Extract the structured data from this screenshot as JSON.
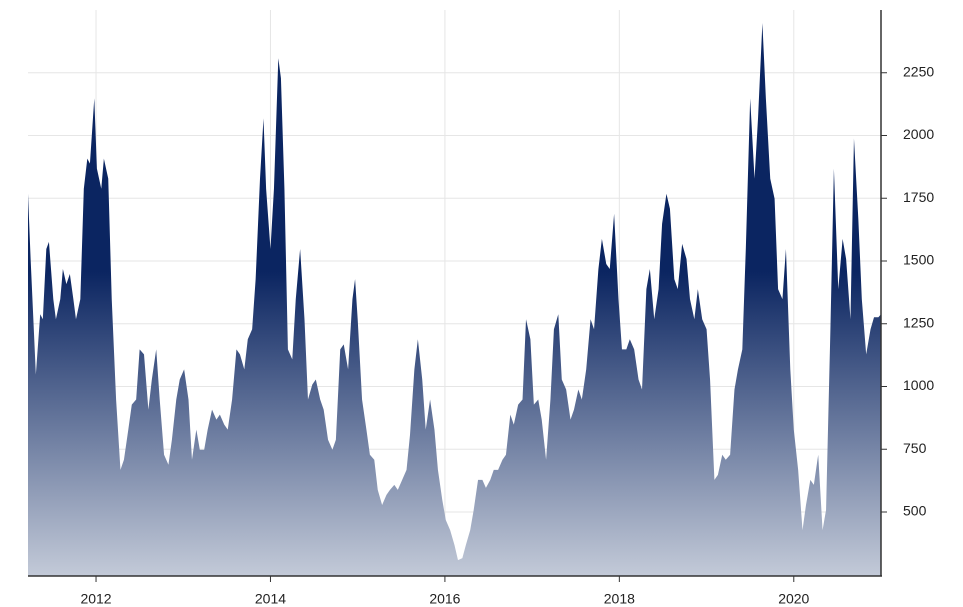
{
  "chart_data": {
    "type": "area",
    "x": [
      2011.22,
      2011.25,
      2011.31,
      2011.36,
      2011.39,
      2011.43,
      2011.46,
      2011.51,
      2011.54,
      2011.59,
      2011.62,
      2011.66,
      2011.7,
      2011.74,
      2011.77,
      2011.82,
      2011.86,
      2011.9,
      2011.93,
      2011.98,
      2012.01,
      2012.06,
      2012.09,
      2012.14,
      2012.18,
      2012.23,
      2012.28,
      2012.32,
      2012.37,
      2012.41,
      2012.46,
      2012.5,
      2012.55,
      2012.6,
      2012.64,
      2012.69,
      2012.73,
      2012.78,
      2012.83,
      2012.87,
      2012.92,
      2012.96,
      2013.01,
      2013.06,
      2013.1,
      2013.15,
      2013.19,
      2013.24,
      2013.28,
      2013.33,
      2013.38,
      2013.42,
      2013.47,
      2013.51,
      2013.56,
      2013.61,
      2013.65,
      2013.7,
      2013.74,
      2013.79,
      2013.83,
      2013.88,
      2013.92,
      2013.95,
      2014.0,
      2014.04,
      2014.09,
      2014.12,
      2014.16,
      2014.2,
      2014.25,
      2014.29,
      2014.34,
      2014.39,
      2014.43,
      2014.48,
      2014.52,
      2014.57,
      2014.61,
      2014.66,
      2014.71,
      2014.75,
      2014.8,
      2014.84,
      2014.89,
      2014.94,
      2014.97,
      2015.0,
      2015.05,
      2015.1,
      2015.14,
      2015.19,
      2015.23,
      2015.28,
      2015.33,
      2015.37,
      2015.42,
      2015.46,
      2015.51,
      2015.56,
      2015.6,
      2015.65,
      2015.69,
      2015.74,
      2015.78,
      2015.83,
      2015.88,
      2015.92,
      2015.97,
      2016.01,
      2016.06,
      2016.11,
      2016.15,
      2016.2,
      2016.24,
      2016.29,
      2016.33,
      2016.38,
      2016.43,
      2016.47,
      2016.52,
      2016.56,
      2016.61,
      2016.66,
      2016.7,
      2016.75,
      2016.79,
      2016.84,
      2016.89,
      2016.93,
      2016.98,
      2017.02,
      2017.07,
      2017.11,
      2017.16,
      2017.21,
      2017.25,
      2017.3,
      2017.34,
      2017.39,
      2017.44,
      2017.48,
      2017.53,
      2017.57,
      2017.62,
      2017.67,
      2017.71,
      2017.76,
      2017.8,
      2017.85,
      2017.89,
      2017.94,
      2017.99,
      2018.03,
      2018.08,
      2018.12,
      2018.17,
      2018.22,
      2018.26,
      2018.31,
      2018.35,
      2018.4,
      2018.45,
      2018.49,
      2018.54,
      2018.58,
      2018.63,
      2018.67,
      2018.72,
      2018.77,
      2018.81,
      2018.86,
      2018.9,
      2018.95,
      2019.0,
      2019.04,
      2019.09,
      2019.13,
      2019.18,
      2019.22,
      2019.27,
      2019.32,
      2019.36,
      2019.41,
      2019.45,
      2019.5,
      2019.55,
      2019.59,
      2019.64,
      2019.68,
      2019.73,
      2019.78,
      2019.82,
      2019.87,
      2019.91,
      2019.96,
      2020.0,
      2020.05,
      2020.1,
      2020.14,
      2020.19,
      2020.23,
      2020.28,
      2020.33,
      2020.37,
      2020.42,
      2020.46,
      2020.51,
      2020.56,
      2020.6,
      2020.65,
      2020.69,
      2020.74,
      2020.78,
      2020.83,
      2020.88,
      2020.92,
      2020.97,
      2021.0
    ],
    "values": [
      1768,
      1508,
      1048,
      1288,
      1268,
      1548,
      1576,
      1348,
      1268,
      1348,
      1468,
      1408,
      1448,
      1348,
      1268,
      1348,
      1788,
      1908,
      1888,
      2148,
      1868,
      1788,
      1908,
      1828,
      1348,
      948,
      668,
      708,
      828,
      928,
      948,
      1148,
      1128,
      908,
      1028,
      1148,
      948,
      728,
      688,
      788,
      948,
      1028,
      1068,
      948,
      708,
      828,
      748,
      748,
      828,
      908,
      868,
      888,
      848,
      828,
      948,
      1148,
      1128,
      1068,
      1188,
      1228,
      1428,
      1828,
      2068,
      1788,
      1548,
      1788,
      2308,
      2228,
      1788,
      1148,
      1108,
      1348,
      1548,
      1268,
      948,
      1008,
      1028,
      948,
      908,
      788,
      748,
      788,
      1148,
      1168,
      1068,
      1348,
      1428,
      1268,
      948,
      828,
      728,
      708,
      588,
      528,
      568,
      588,
      608,
      588,
      628,
      668,
      808,
      1068,
      1188,
      1028,
      828,
      948,
      828,
      668,
      548,
      468,
      428,
      368,
      308,
      316,
      368,
      428,
      508,
      628,
      628,
      596,
      628,
      668,
      668,
      708,
      728,
      888,
      848,
      928,
      948,
      1268,
      1188,
      928,
      948,
      868,
      708,
      948,
      1228,
      1288,
      1028,
      988,
      868,
      908,
      988,
      948,
      1068,
      1268,
      1228,
      1468,
      1588,
      1488,
      1468,
      1688,
      1348,
      1148,
      1148,
      1188,
      1148,
      1028,
      988,
      1388,
      1468,
      1268,
      1388,
      1648,
      1768,
      1708,
      1428,
      1388,
      1568,
      1508,
      1348,
      1268,
      1388,
      1268,
      1228,
      1028,
      628,
      648,
      728,
      708,
      728,
      988,
      1068,
      1148,
      1548,
      2148,
      1828,
      2068,
      2448,
      2148,
      1828,
      1748,
      1388,
      1348,
      1548,
      1068,
      828,
      668,
      428,
      528,
      628,
      608,
      728,
      428,
      508,
      1228,
      1868,
      1388,
      1588,
      1508,
      1268,
      1988,
      1668,
      1348,
      1128,
      1228,
      1276,
      1276,
      1288
    ],
    "color": "#0b2561",
    "color_bottom": "#c3cad8",
    "xlim": [
      2011.22,
      2021.0
    ],
    "xticks": [
      2012,
      2014,
      2016,
      2018,
      2020
    ],
    "ylim": [
      245,
      2500
    ],
    "yticks": [
      500,
      750,
      1000,
      1250,
      1500,
      1750,
      2000,
      2250
    ],
    "grid": true,
    "y_axis_side": "right"
  }
}
